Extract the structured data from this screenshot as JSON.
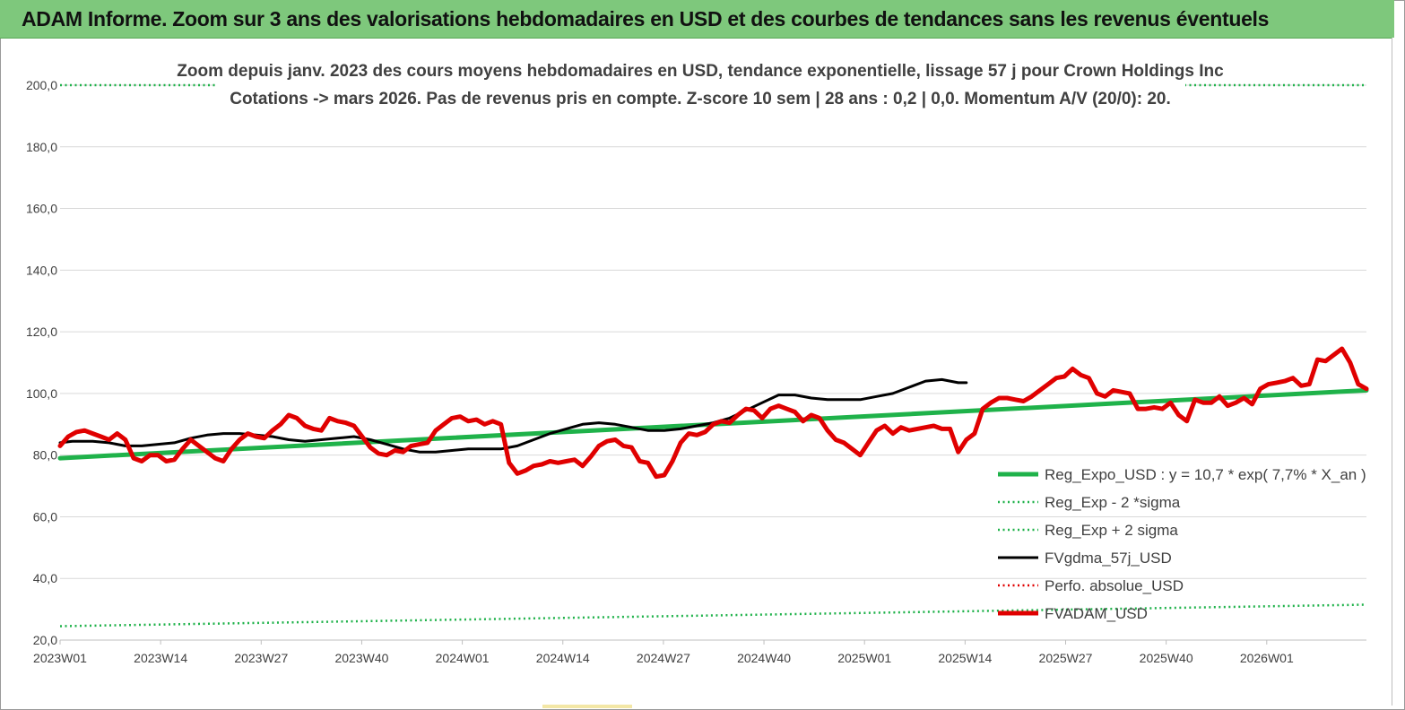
{
  "banner": {
    "title": "ADAM Informe. Zoom sur 3 ans des valorisations hebdomadaires en USD et des courbes de tendances sans les revenus éventuels"
  },
  "chart_data": {
    "type": "line",
    "title": "Zoom depuis janv. 2023 des cours moyens hebdomadaires en USD, tendance exponentielle, lissage 57 j pour Crown Holdings Inc",
    "subtitle": "Cotations -> mars 2026. Pas de revenus pris en compte. Z-score 10 sem | 28 ans : 0,2 | 0,0. Momentum A/V (20/0): 20.",
    "xlabel": "",
    "ylabel": "",
    "ylim": [
      20,
      200
    ],
    "y_ticks": [
      "20,0",
      "40,0",
      "60,0",
      "80,0",
      "100,0",
      "120,0",
      "140,0",
      "160,0",
      "180,0",
      "200,0"
    ],
    "x_ticks": [
      "2023W01",
      "2023W14",
      "2023W27",
      "2023W40",
      "2024W01",
      "2024W14",
      "2024W27",
      "2024W40",
      "2025W01",
      "2025W14",
      "2025W27",
      "2025W40",
      "2026W01"
    ],
    "x_total_weeks": 170,
    "grid": "horizontal",
    "legend_position": "right",
    "colors": {
      "reg_expo": "#1fb24a",
      "sigma": "#1fb24a",
      "gdma": "#000000",
      "perfo": "#e00000",
      "fvadam": "#e00000"
    },
    "series": [
      {
        "name": "Reg_Expo_USD : y = 10,7 * exp( 7,7% *  X_an )",
        "style": "thick",
        "color": "#1fb24a",
        "points": [
          [
            0,
            79
          ],
          [
            170,
            101
          ]
        ]
      },
      {
        "name": "Reg_Exp - 2 *sigma",
        "style": "dotted",
        "color": "#1fb24a",
        "points": [
          [
            0,
            24.5
          ],
          [
            170,
            31.5
          ]
        ]
      },
      {
        "name": "Reg_Exp + 2 sigma",
        "style": "dotted",
        "color": "#1fb24a",
        "points": [
          [
            0,
            200
          ],
          [
            170,
            200
          ]
        ]
      },
      {
        "name": "FVgdma_57j_USD",
        "style": "solid",
        "color": "#000000",
        "points": [
          [
            0,
            84
          ],
          [
            3,
            84.5
          ],
          [
            8,
            84.5
          ],
          [
            12,
            84
          ],
          [
            16,
            83
          ],
          [
            20,
            83
          ],
          [
            24,
            83.5
          ],
          [
            28,
            84
          ],
          [
            32,
            85.5
          ],
          [
            36,
            86.5
          ],
          [
            40,
            87
          ],
          [
            44,
            87
          ],
          [
            48,
            86.5
          ],
          [
            52,
            86
          ],
          [
            56,
            85
          ],
          [
            60,
            84.5
          ],
          [
            64,
            85
          ],
          [
            68,
            85.5
          ],
          [
            72,
            86
          ],
          [
            76,
            85
          ],
          [
            80,
            83.5
          ],
          [
            84,
            82
          ],
          [
            88,
            81
          ],
          [
            92,
            81
          ],
          [
            96,
            81.5
          ],
          [
            100,
            82
          ],
          [
            104,
            82
          ],
          [
            108,
            82
          ],
          [
            112,
            83
          ],
          [
            116,
            85
          ],
          [
            120,
            87
          ],
          [
            124,
            88.5
          ],
          [
            128,
            90
          ],
          [
            132,
            90.5
          ],
          [
            136,
            90
          ],
          [
            140,
            89
          ],
          [
            144,
            88
          ],
          [
            148,
            88
          ],
          [
            152,
            88.5
          ],
          [
            156,
            89.5
          ],
          [
            160,
            90.5
          ],
          [
            164,
            92
          ],
          [
            168,
            94.5
          ],
          [
            172,
            97
          ],
          [
            176,
            99.5
          ],
          [
            180,
            99.5
          ],
          [
            184,
            98.5
          ],
          [
            188,
            98
          ],
          [
            192,
            98
          ],
          [
            196,
            98
          ],
          [
            200,
            99
          ],
          [
            204,
            100
          ],
          [
            208,
            102
          ],
          [
            212,
            104
          ],
          [
            216,
            104.5
          ],
          [
            218,
            104
          ],
          [
            220,
            103.5
          ],
          [
            222,
            103.5
          ]
        ]
      },
      {
        "name": "Perfo. absolue_USD",
        "style": "dotted",
        "color": "#e00000",
        "points": []
      },
      {
        "name": "FVADAM_USD",
        "style": "thick",
        "color": "#e00000",
        "points": [
          [
            0,
            83
          ],
          [
            2,
            86
          ],
          [
            4,
            87.5
          ],
          [
            6,
            88
          ],
          [
            8,
            87
          ],
          [
            10,
            86
          ],
          [
            12,
            85
          ],
          [
            14,
            87
          ],
          [
            16,
            85
          ],
          [
            18,
            79
          ],
          [
            20,
            78
          ],
          [
            22,
            80
          ],
          [
            24,
            80
          ],
          [
            26,
            78
          ],
          [
            28,
            78.5
          ],
          [
            30,
            82
          ],
          [
            32,
            85
          ],
          [
            34,
            83
          ],
          [
            36,
            81
          ],
          [
            38,
            79
          ],
          [
            40,
            78
          ],
          [
            42,
            82
          ],
          [
            44,
            85
          ],
          [
            46,
            87
          ],
          [
            48,
            86
          ],
          [
            50,
            85.5
          ],
          [
            52,
            88
          ],
          [
            54,
            90
          ],
          [
            56,
            93
          ],
          [
            58,
            92
          ],
          [
            60,
            89.5
          ],
          [
            62,
            88.5
          ],
          [
            64,
            88
          ],
          [
            66,
            92
          ],
          [
            68,
            91
          ],
          [
            70,
            90.5
          ],
          [
            72,
            89.5
          ],
          [
            74,
            86
          ],
          [
            76,
            82.5
          ],
          [
            78,
            80.5
          ],
          [
            80,
            80
          ],
          [
            82,
            81.5
          ],
          [
            84,
            81
          ],
          [
            86,
            83
          ],
          [
            88,
            83.5
          ],
          [
            90,
            84
          ],
          [
            92,
            88
          ],
          [
            94,
            90
          ],
          [
            96,
            92
          ],
          [
            98,
            92.5
          ],
          [
            100,
            91
          ],
          [
            102,
            91.5
          ],
          [
            104,
            90
          ],
          [
            106,
            91
          ],
          [
            108,
            90
          ],
          [
            110,
            77.5
          ],
          [
            112,
            74
          ],
          [
            114,
            75
          ],
          [
            116,
            76.5
          ],
          [
            118,
            77
          ],
          [
            120,
            78
          ],
          [
            122,
            77.5
          ],
          [
            124,
            78
          ],
          [
            126,
            78.5
          ],
          [
            128,
            76.5
          ],
          [
            130,
            79.5
          ],
          [
            132,
            83
          ],
          [
            134,
            84.5
          ],
          [
            136,
            85
          ],
          [
            138,
            83
          ],
          [
            140,
            82.5
          ],
          [
            142,
            78
          ],
          [
            144,
            77.5
          ],
          [
            146,
            73
          ],
          [
            148,
            73.5
          ],
          [
            150,
            78
          ],
          [
            152,
            84
          ],
          [
            154,
            87
          ],
          [
            156,
            86.5
          ],
          [
            158,
            87.5
          ],
          [
            160,
            90
          ],
          [
            162,
            91
          ],
          [
            164,
            90.5
          ],
          [
            166,
            93
          ],
          [
            168,
            95
          ],
          [
            170,
            94.5
          ],
          [
            172,
            92
          ],
          [
            174,
            95
          ],
          [
            176,
            96
          ],
          [
            178,
            95
          ],
          [
            180,
            94
          ],
          [
            182,
            91
          ],
          [
            184,
            93
          ],
          [
            186,
            92
          ],
          [
            188,
            88
          ],
          [
            190,
            85
          ],
          [
            192,
            84
          ],
          [
            194,
            82
          ],
          [
            196,
            80
          ],
          [
            198,
            84
          ],
          [
            200,
            88
          ],
          [
            202,
            89.5
          ],
          [
            204,
            87
          ],
          [
            206,
            89
          ],
          [
            208,
            88
          ],
          [
            210,
            88.5
          ],
          [
            212,
            89
          ],
          [
            214,
            89.5
          ],
          [
            216,
            88.5
          ],
          [
            218,
            88.5
          ],
          [
            220,
            81
          ],
          [
            222,
            85
          ],
          [
            224,
            87
          ],
          [
            226,
            95
          ],
          [
            228,
            97
          ],
          [
            230,
            98.5
          ],
          [
            232,
            98.5
          ],
          [
            234,
            98
          ],
          [
            236,
            97.5
          ],
          [
            238,
            99
          ],
          [
            240,
            101
          ],
          [
            242,
            103
          ],
          [
            244,
            105
          ],
          [
            246,
            105.5
          ],
          [
            248,
            108
          ],
          [
            250,
            106
          ],
          [
            252,
            105
          ],
          [
            254,
            100
          ],
          [
            256,
            99
          ],
          [
            258,
            101
          ],
          [
            260,
            100.5
          ],
          [
            262,
            100
          ],
          [
            264,
            95
          ],
          [
            266,
            95
          ],
          [
            268,
            95.5
          ],
          [
            270,
            95
          ],
          [
            272,
            97
          ],
          [
            274,
            93
          ],
          [
            276,
            91
          ],
          [
            278,
            98
          ],
          [
            280,
            97
          ],
          [
            282,
            97
          ],
          [
            284,
            99
          ],
          [
            286,
            96
          ],
          [
            288,
            97
          ],
          [
            290,
            98.5
          ],
          [
            292,
            96.5
          ],
          [
            294,
            101.5
          ],
          [
            296,
            103
          ],
          [
            298,
            103.5
          ],
          [
            300,
            104
          ],
          [
            302,
            105
          ],
          [
            304,
            102.5
          ],
          [
            306,
            103
          ],
          [
            308,
            111
          ],
          [
            310,
            110.5
          ],
          [
            312,
            112.5
          ],
          [
            314,
            114.5
          ],
          [
            316,
            110
          ],
          [
            318,
            103
          ],
          [
            320,
            101.5
          ]
        ]
      }
    ]
  }
}
